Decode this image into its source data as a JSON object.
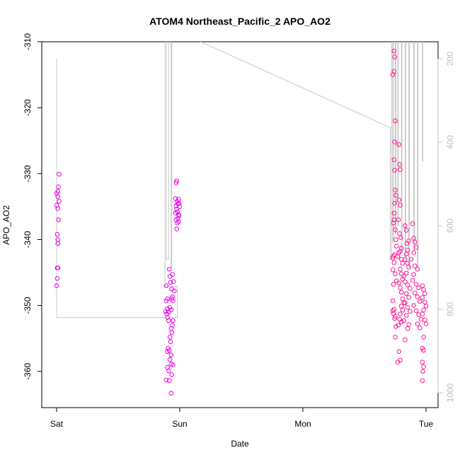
{
  "chart_data": {
    "type": "scatter",
    "title": "ATOM4 Northeast_Pacific_2 APO_AO2",
    "xlabel": "Date",
    "ylabel": "APO_AO2",
    "x_ticks": [
      "Sat",
      "Sun",
      "Mon",
      "Tue"
    ],
    "x_tick_values": [
      0,
      1,
      2,
      3
    ],
    "y_ticks": [
      -310,
      -320,
      -330,
      -340,
      -350,
      -360
    ],
    "ylim": [
      -365.5,
      -310
    ],
    "y2_ticks": [
      200,
      400,
      600,
      800,
      1000
    ],
    "y2lim": [
      1020,
      150
    ],
    "grid": false,
    "colors": {
      "points": "#ff1493",
      "points_alt": "#e600e6",
      "line": "#c8c8c8"
    },
    "series": [
      {
        "type": "scatter",
        "marker": "open-circle",
        "points": [
          [
            0.0,
            -333.0
          ],
          [
            0.01,
            -332.7
          ],
          [
            0.02,
            -330.1
          ],
          [
            0.015,
            -332.0
          ],
          [
            0.01,
            -333.5
          ],
          [
            0.02,
            -334.2
          ],
          [
            0.0,
            -334.8
          ],
          [
            0.01,
            -335.3
          ],
          [
            0.015,
            -337.0
          ],
          [
            0.005,
            -339.2
          ],
          [
            0.01,
            -340.0
          ],
          [
            0.01,
            -340.6
          ],
          [
            0.005,
            -344.3
          ],
          [
            0.01,
            -344.3
          ],
          [
            0.005,
            -345.9
          ],
          [
            0.0,
            -347.0
          ],
          [
            0.89,
            -347.0
          ],
          [
            0.9,
            -349.0
          ],
          [
            0.89,
            -349.3
          ],
          [
            0.885,
            -350.9
          ],
          [
            0.9,
            -350.5
          ],
          [
            0.895,
            -351.3
          ],
          [
            0.91,
            -351.0
          ],
          [
            0.92,
            -350.3
          ],
          [
            0.9,
            -351.8
          ],
          [
            0.91,
            -352.3
          ],
          [
            0.93,
            -350.7
          ],
          [
            0.925,
            -346.5
          ],
          [
            0.92,
            -345.6
          ],
          [
            0.915,
            -344.5
          ],
          [
            0.94,
            -345.3
          ],
          [
            0.935,
            -347.5
          ],
          [
            0.94,
            -348.7
          ],
          [
            0.945,
            -349.3
          ],
          [
            0.935,
            -349.0
          ],
          [
            0.95,
            -346.4
          ],
          [
            0.955,
            -347.8
          ],
          [
            0.945,
            -352.3
          ],
          [
            0.94,
            -353.0
          ],
          [
            0.93,
            -353.5
          ],
          [
            0.935,
            -354.1
          ],
          [
            0.92,
            -354.8
          ],
          [
            0.925,
            -355.5
          ],
          [
            0.905,
            -356.5
          ],
          [
            0.9,
            -357.0
          ],
          [
            0.915,
            -356.8
          ],
          [
            0.93,
            -357.5
          ],
          [
            0.92,
            -358.2
          ],
          [
            0.93,
            -358.9
          ],
          [
            0.945,
            -359.0
          ],
          [
            0.9,
            -359.4
          ],
          [
            0.91,
            -359.9
          ],
          [
            0.935,
            -360.5
          ],
          [
            0.89,
            -361.3
          ],
          [
            0.915,
            -361.4
          ],
          [
            0.93,
            -363.3
          ],
          [
            0.97,
            -331.4
          ],
          [
            0.975,
            -331.1
          ],
          [
            0.965,
            -333.8
          ],
          [
            0.98,
            -334.2
          ],
          [
            0.985,
            -334.6
          ],
          [
            0.99,
            -333.9
          ],
          [
            0.97,
            -334.9
          ],
          [
            0.975,
            -335.4
          ],
          [
            0.965,
            -336.0
          ],
          [
            0.98,
            -335.8
          ],
          [
            0.99,
            -336.2
          ],
          [
            0.985,
            -336.8
          ],
          [
            0.995,
            -336.4
          ],
          [
            0.97,
            -337.0
          ],
          [
            0.98,
            -337.5
          ],
          [
            0.99,
            -337.3
          ],
          [
            0.975,
            -338.4
          ],
          [
            0.995,
            -334.5
          ],
          [
            1.0,
            -335.0
          ]
        ]
      },
      {
        "type": "scatter",
        "marker": "open-circle",
        "points": [
          [
            2.73,
            -315.0
          ],
          [
            2.74,
            -311.4
          ],
          [
            2.745,
            -312.3
          ],
          [
            2.74,
            -314.5
          ],
          [
            2.75,
            -322.0
          ],
          [
            2.745,
            -325.2
          ],
          [
            2.74,
            -327.9
          ],
          [
            2.745,
            -329.5
          ],
          [
            2.75,
            -332.5
          ],
          [
            2.755,
            -333.3
          ],
          [
            2.745,
            -334.5
          ],
          [
            2.74,
            -336.0
          ],
          [
            2.735,
            -337.5
          ],
          [
            2.74,
            -337.0
          ],
          [
            2.75,
            -338.5
          ],
          [
            2.755,
            -340.0
          ],
          [
            2.76,
            -341.0
          ],
          [
            2.745,
            -342.3
          ],
          [
            2.735,
            -342.5
          ],
          [
            2.73,
            -342.8
          ],
          [
            2.74,
            -343.5
          ],
          [
            2.73,
            -344.6
          ],
          [
            2.75,
            -345.2
          ],
          [
            2.76,
            -346.3
          ],
          [
            2.735,
            -346.8
          ],
          [
            2.73,
            -349.3
          ],
          [
            2.74,
            -350.6
          ],
          [
            2.735,
            -351.2
          ],
          [
            2.73,
            -350.8
          ],
          [
            2.75,
            -351.7
          ],
          [
            2.745,
            -352.0
          ],
          [
            2.755,
            -353.2
          ],
          [
            2.75,
            -354.8
          ],
          [
            2.78,
            -325.6
          ],
          [
            2.785,
            -328.6
          ],
          [
            2.79,
            -329.4
          ],
          [
            2.78,
            -334.0
          ],
          [
            2.79,
            -334.8
          ],
          [
            2.775,
            -337.0
          ],
          [
            2.785,
            -339.1
          ],
          [
            2.795,
            -339.7
          ],
          [
            2.8,
            -341.3
          ],
          [
            2.78,
            -342.0
          ],
          [
            2.79,
            -341.8
          ],
          [
            2.77,
            -342.6
          ],
          [
            2.8,
            -343.0
          ],
          [
            2.81,
            -343.6
          ],
          [
            2.79,
            -344.5
          ],
          [
            2.8,
            -345.2
          ],
          [
            2.81,
            -346.0
          ],
          [
            2.78,
            -346.6
          ],
          [
            2.79,
            -347.3
          ],
          [
            2.8,
            -348.0
          ],
          [
            2.81,
            -349.0
          ],
          [
            2.82,
            -349.6
          ],
          [
            2.8,
            -350.1
          ],
          [
            2.81,
            -350.7
          ],
          [
            2.79,
            -351.3
          ],
          [
            2.785,
            -352.1
          ],
          [
            2.8,
            -352.5
          ],
          [
            2.775,
            -353.0
          ],
          [
            2.78,
            -357.0
          ],
          [
            2.79,
            -358.3
          ],
          [
            2.77,
            -358.6
          ],
          [
            2.83,
            -337.9
          ],
          [
            2.84,
            -338.6
          ],
          [
            2.845,
            -340.6
          ],
          [
            2.85,
            -341.6
          ],
          [
            2.86,
            -340.2
          ],
          [
            2.84,
            -342.2
          ],
          [
            2.83,
            -343.0
          ],
          [
            2.85,
            -343.6
          ],
          [
            2.86,
            -344.2
          ],
          [
            2.84,
            -345.1
          ],
          [
            2.82,
            -345.6
          ],
          [
            2.83,
            -346.4
          ],
          [
            2.85,
            -346.9
          ],
          [
            2.87,
            -347.4
          ],
          [
            2.84,
            -348.2
          ],
          [
            2.86,
            -348.8
          ],
          [
            2.83,
            -349.6
          ],
          [
            2.85,
            -350.3
          ],
          [
            2.87,
            -350.9
          ],
          [
            2.84,
            -351.5
          ],
          [
            2.82,
            -352.3
          ],
          [
            2.86,
            -352.9
          ],
          [
            2.85,
            -353.5
          ],
          [
            2.83,
            -355.2
          ],
          [
            2.89,
            -337.6
          ],
          [
            2.9,
            -339.8
          ],
          [
            2.91,
            -340.4
          ],
          [
            2.92,
            -341.2
          ],
          [
            2.9,
            -342.0
          ],
          [
            2.88,
            -343.0
          ],
          [
            2.91,
            -344.0
          ],
          [
            2.93,
            -344.5
          ],
          [
            2.9,
            -345.3
          ],
          [
            2.89,
            -346.2
          ],
          [
            2.92,
            -346.8
          ],
          [
            2.94,
            -347.3
          ],
          [
            2.91,
            -348.1
          ],
          [
            2.93,
            -348.7
          ],
          [
            2.95,
            -349.4
          ],
          [
            2.9,
            -350.0
          ],
          [
            2.92,
            -350.8
          ],
          [
            2.94,
            -351.4
          ],
          [
            2.96,
            -352.1
          ],
          [
            2.93,
            -352.8
          ],
          [
            2.95,
            -353.4
          ],
          [
            2.97,
            -347.0
          ],
          [
            2.98,
            -347.6
          ],
          [
            2.99,
            -348.2
          ],
          [
            2.97,
            -348.8
          ],
          [
            2.99,
            -349.5
          ],
          [
            3.0,
            -350.1
          ],
          [
            2.98,
            -350.7
          ],
          [
            2.97,
            -351.3
          ],
          [
            2.99,
            -352.2
          ],
          [
            3.0,
            -352.8
          ],
          [
            2.98,
            -354.8
          ],
          [
            2.97,
            -356.5
          ],
          [
            2.98,
            -356.8
          ],
          [
            2.97,
            -358.6
          ],
          [
            2.98,
            -359.3
          ],
          [
            2.975,
            -360.0
          ],
          [
            2.97,
            -361.4
          ]
        ]
      }
    ],
    "line_series": {
      "type": "line",
      "axis": "right",
      "points": [
        [
          0.0,
          200
        ],
        [
          0.0,
          820
        ],
        [
          0.98,
          820
        ],
        [
          0.98,
          745
        ],
        [
          0.88,
          745
        ],
        [
          0.88,
          150
        ],
        [
          0.89,
          150
        ],
        [
          0.89,
          680
        ],
        [
          0.91,
          680
        ],
        [
          0.91,
          150
        ],
        [
          0.93,
          150
        ],
        [
          0.93,
          700
        ],
        [
          0.935,
          700
        ],
        [
          0.935,
          150
        ],
        [
          1.1,
          150
        ],
        [
          2.71,
          365
        ],
        [
          2.71,
          680
        ],
        [
          2.72,
          680
        ],
        [
          2.72,
          150
        ],
        [
          2.73,
          150
        ],
        [
          2.73,
          640
        ],
        [
          2.735,
          640
        ],
        [
          2.735,
          150
        ],
        [
          2.75,
          150
        ],
        [
          2.75,
          620
        ],
        [
          2.755,
          620
        ],
        [
          2.755,
          150
        ],
        [
          2.77,
          150
        ],
        [
          2.77,
          600
        ],
        [
          2.775,
          600
        ],
        [
          2.775,
          150
        ],
        [
          2.8,
          150
        ],
        [
          2.8,
          660
        ],
        [
          2.805,
          660
        ],
        [
          2.805,
          150
        ],
        [
          2.83,
          150
        ],
        [
          2.83,
          680
        ],
        [
          2.835,
          680
        ],
        [
          2.835,
          150
        ],
        [
          2.86,
          150
        ],
        [
          2.86,
          700
        ],
        [
          2.865,
          700
        ],
        [
          2.865,
          150
        ],
        [
          2.9,
          150
        ],
        [
          2.9,
          660
        ],
        [
          2.905,
          660
        ],
        [
          2.905,
          150
        ],
        [
          2.93,
          150
        ],
        [
          2.93,
          700
        ],
        [
          2.935,
          700
        ],
        [
          2.935,
          150
        ],
        [
          2.97,
          150
        ],
        [
          2.97,
          445
        ],
        [
          2.975,
          445
        ],
        [
          2.975,
          150
        ],
        [
          2.99,
          150
        ]
      ]
    }
  }
}
